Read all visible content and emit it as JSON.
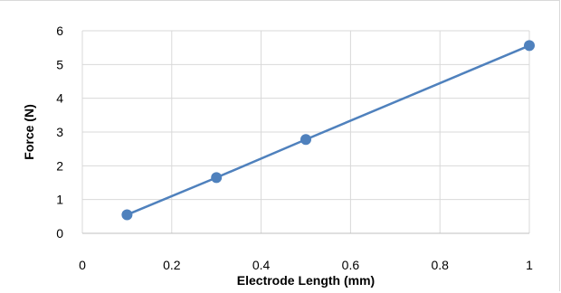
{
  "chart_data": {
    "type": "line",
    "title": "",
    "xlabel": "Electrode Length (mm)",
    "ylabel": "Force (N)",
    "xlim": [
      0,
      1
    ],
    "ylim": [
      0,
      6
    ],
    "xticks": [
      0,
      0.2,
      0.4,
      0.6,
      0.8,
      1
    ],
    "xtick_labels": [
      "0",
      "0.2",
      "0.4",
      "0.6",
      "0.8",
      "1"
    ],
    "yticks": [
      0,
      1,
      2,
      3,
      4,
      5,
      6
    ],
    "ytick_labels": [
      "0",
      "1",
      "2",
      "3",
      "4",
      "5",
      "6"
    ],
    "grid": true,
    "legend": "none",
    "series": [
      {
        "x": [
          0.1,
          0.3,
          0.5,
          1.0
        ],
        "y": [
          0.55,
          1.65,
          2.78,
          5.56
        ],
        "color": "#4f81bd",
        "markers": true
      }
    ]
  }
}
